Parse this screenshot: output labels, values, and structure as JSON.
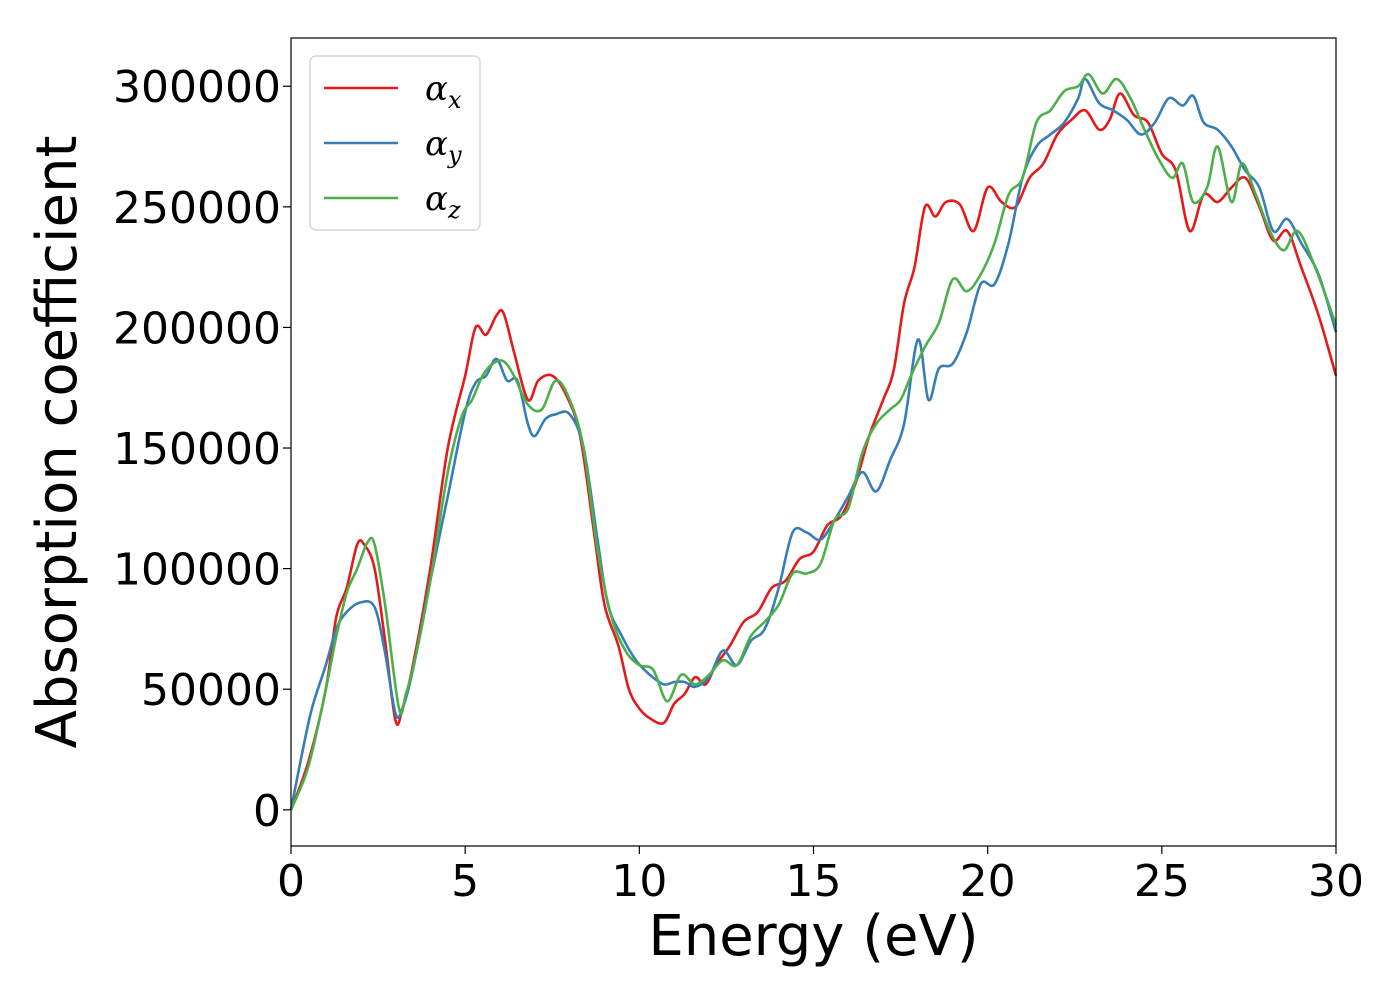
{
  "chart_data": {
    "type": "line",
    "title": "",
    "xlabel": "Energy (eV)",
    "ylabel": "Absorption coefficient",
    "xlim": [
      0,
      30
    ],
    "ylim": [
      -15000,
      320000
    ],
    "xticks": [
      0,
      5,
      10,
      15,
      20,
      25,
      30
    ],
    "yticks": [
      0,
      50000,
      100000,
      150000,
      200000,
      250000,
      300000
    ],
    "grid": false,
    "legend_position": "top-left",
    "series": [
      {
        "name": "αx",
        "legend_symbol": "α",
        "legend_sub": "x",
        "color": "#e41a1c",
        "points": [
          [
            0,
            0
          ],
          [
            0.5,
            20000
          ],
          [
            1,
            50000
          ],
          [
            1.3,
            80000
          ],
          [
            1.6,
            92000
          ],
          [
            1.9,
            110000
          ],
          [
            2.1,
            110000
          ],
          [
            2.4,
            100000
          ],
          [
            2.7,
            70000
          ],
          [
            3.0,
            37000
          ],
          [
            3.2,
            42000
          ],
          [
            3.5,
            60000
          ],
          [
            4.0,
            100000
          ],
          [
            4.5,
            150000
          ],
          [
            5.0,
            180000
          ],
          [
            5.3,
            200000
          ],
          [
            5.6,
            197000
          ],
          [
            5.9,
            205000
          ],
          [
            6.1,
            206000
          ],
          [
            6.4,
            190000
          ],
          [
            6.8,
            170000
          ],
          [
            7.1,
            178000
          ],
          [
            7.5,
            180000
          ],
          [
            7.9,
            172000
          ],
          [
            8.3,
            155000
          ],
          [
            8.7,
            115000
          ],
          [
            9.0,
            85000
          ],
          [
            9.4,
            68000
          ],
          [
            9.7,
            50000
          ],
          [
            10.0,
            42000
          ],
          [
            10.3,
            38000
          ],
          [
            10.7,
            36000
          ],
          [
            11.0,
            44000
          ],
          [
            11.3,
            48000
          ],
          [
            11.6,
            55000
          ],
          [
            11.9,
            52000
          ],
          [
            12.2,
            60000
          ],
          [
            12.6,
            68000
          ],
          [
            13.0,
            78000
          ],
          [
            13.4,
            82000
          ],
          [
            13.8,
            92000
          ],
          [
            14.2,
            95000
          ],
          [
            14.6,
            104000
          ],
          [
            15.0,
            107000
          ],
          [
            15.4,
            118000
          ],
          [
            15.8,
            122000
          ],
          [
            16.2,
            135000
          ],
          [
            16.6,
            155000
          ],
          [
            17.0,
            170000
          ],
          [
            17.3,
            182000
          ],
          [
            17.6,
            210000
          ],
          [
            17.9,
            225000
          ],
          [
            18.2,
            250000
          ],
          [
            18.5,
            246000
          ],
          [
            18.8,
            252000
          ],
          [
            19.2,
            251000
          ],
          [
            19.6,
            240000
          ],
          [
            20.0,
            258000
          ],
          [
            20.4,
            252000
          ],
          [
            20.8,
            250000
          ],
          [
            21.2,
            262000
          ],
          [
            21.6,
            268000
          ],
          [
            22.0,
            280000
          ],
          [
            22.4,
            286000
          ],
          [
            22.8,
            290000
          ],
          [
            23.2,
            282000
          ],
          [
            23.5,
            286000
          ],
          [
            23.8,
            297000
          ],
          [
            24.2,
            288000
          ],
          [
            24.6,
            285000
          ],
          [
            25.0,
            272000
          ],
          [
            25.4,
            265000
          ],
          [
            25.8,
            240000
          ],
          [
            26.2,
            255000
          ],
          [
            26.6,
            252000
          ],
          [
            27.0,
            258000
          ],
          [
            27.4,
            262000
          ],
          [
            27.8,
            250000
          ],
          [
            28.2,
            236000
          ],
          [
            28.6,
            240000
          ],
          [
            29.0,
            225000
          ],
          [
            29.5,
            205000
          ],
          [
            30.0,
            180000
          ]
        ]
      },
      {
        "name": "αy",
        "legend_symbol": "α",
        "legend_sub": "y",
        "color": "#377eb8",
        "points": [
          [
            0,
            0
          ],
          [
            0.3,
            22000
          ],
          [
            0.6,
            42000
          ],
          [
            1.0,
            60000
          ],
          [
            1.3,
            75000
          ],
          [
            1.6,
            82000
          ],
          [
            2.0,
            86000
          ],
          [
            2.4,
            84000
          ],
          [
            2.7,
            65000
          ],
          [
            3.0,
            40000
          ],
          [
            3.2,
            42000
          ],
          [
            3.5,
            58000
          ],
          [
            4.0,
            95000
          ],
          [
            4.5,
            130000
          ],
          [
            5.0,
            165000
          ],
          [
            5.3,
            177000
          ],
          [
            5.6,
            180000
          ],
          [
            5.9,
            187000
          ],
          [
            6.2,
            178000
          ],
          [
            6.5,
            178000
          ],
          [
            6.8,
            160000
          ],
          [
            7.0,
            155000
          ],
          [
            7.3,
            162000
          ],
          [
            7.6,
            164000
          ],
          [
            8.0,
            164000
          ],
          [
            8.4,
            150000
          ],
          [
            8.8,
            112000
          ],
          [
            9.1,
            85000
          ],
          [
            9.5,
            72000
          ],
          [
            9.9,
            62000
          ],
          [
            10.3,
            56000
          ],
          [
            10.7,
            52000
          ],
          [
            11.0,
            53000
          ],
          [
            11.3,
            53000
          ],
          [
            11.6,
            51000
          ],
          [
            12.0,
            55000
          ],
          [
            12.4,
            66000
          ],
          [
            12.8,
            60000
          ],
          [
            13.2,
            70000
          ],
          [
            13.6,
            75000
          ],
          [
            14.0,
            92000
          ],
          [
            14.4,
            115000
          ],
          [
            14.8,
            115000
          ],
          [
            15.2,
            112000
          ],
          [
            15.6,
            120000
          ],
          [
            16.0,
            130000
          ],
          [
            16.4,
            140000
          ],
          [
            16.8,
            132000
          ],
          [
            17.2,
            145000
          ],
          [
            17.6,
            160000
          ],
          [
            18.0,
            195000
          ],
          [
            18.3,
            170000
          ],
          [
            18.6,
            183000
          ],
          [
            19.0,
            185000
          ],
          [
            19.4,
            198000
          ],
          [
            19.8,
            218000
          ],
          [
            20.2,
            218000
          ],
          [
            20.6,
            235000
          ],
          [
            21.0,
            262000
          ],
          [
            21.4,
            275000
          ],
          [
            21.8,
            280000
          ],
          [
            22.2,
            285000
          ],
          [
            22.6,
            295000
          ],
          [
            22.8,
            303000
          ],
          [
            23.2,
            293000
          ],
          [
            23.6,
            290000
          ],
          [
            24.0,
            286000
          ],
          [
            24.4,
            280000
          ],
          [
            24.8,
            285000
          ],
          [
            25.2,
            295000
          ],
          [
            25.6,
            292000
          ],
          [
            25.9,
            296000
          ],
          [
            26.2,
            285000
          ],
          [
            26.6,
            282000
          ],
          [
            27.0,
            275000
          ],
          [
            27.4,
            265000
          ],
          [
            27.8,
            258000
          ],
          [
            28.2,
            240000
          ],
          [
            28.6,
            245000
          ],
          [
            29.0,
            235000
          ],
          [
            29.5,
            222000
          ],
          [
            30.0,
            198000
          ]
        ]
      },
      {
        "name": "αz",
        "legend_symbol": "α",
        "legend_sub": "z",
        "color": "#4daf4a",
        "points": [
          [
            0,
            0
          ],
          [
            0.5,
            18000
          ],
          [
            1.0,
            50000
          ],
          [
            1.3,
            72000
          ],
          [
            1.6,
            90000
          ],
          [
            1.9,
            100000
          ],
          [
            2.2,
            111000
          ],
          [
            2.4,
            110000
          ],
          [
            2.7,
            85000
          ],
          [
            3.1,
            42000
          ],
          [
            3.3,
            48000
          ],
          [
            3.6,
            65000
          ],
          [
            4.0,
            95000
          ],
          [
            4.5,
            140000
          ],
          [
            4.9,
            163000
          ],
          [
            5.2,
            170000
          ],
          [
            5.5,
            180000
          ],
          [
            5.8,
            185000
          ],
          [
            6.1,
            186000
          ],
          [
            6.4,
            180000
          ],
          [
            6.8,
            168000
          ],
          [
            7.2,
            166000
          ],
          [
            7.6,
            178000
          ],
          [
            8.0,
            170000
          ],
          [
            8.4,
            150000
          ],
          [
            8.8,
            108000
          ],
          [
            9.2,
            80000
          ],
          [
            9.6,
            66000
          ],
          [
            10.0,
            60000
          ],
          [
            10.4,
            58000
          ],
          [
            10.8,
            45000
          ],
          [
            11.2,
            56000
          ],
          [
            11.6,
            52000
          ],
          [
            12.0,
            56000
          ],
          [
            12.4,
            62000
          ],
          [
            12.8,
            60000
          ],
          [
            13.2,
            72000
          ],
          [
            13.6,
            78000
          ],
          [
            14.0,
            85000
          ],
          [
            14.4,
            98000
          ],
          [
            14.8,
            98000
          ],
          [
            15.2,
            102000
          ],
          [
            15.6,
            120000
          ],
          [
            16.0,
            125000
          ],
          [
            16.4,
            148000
          ],
          [
            16.8,
            160000
          ],
          [
            17.2,
            166000
          ],
          [
            17.5,
            170000
          ],
          [
            17.8,
            180000
          ],
          [
            18.2,
            192000
          ],
          [
            18.6,
            202000
          ],
          [
            19.0,
            220000
          ],
          [
            19.4,
            215000
          ],
          [
            19.8,
            222000
          ],
          [
            20.2,
            235000
          ],
          [
            20.6,
            255000
          ],
          [
            21.0,
            262000
          ],
          [
            21.4,
            285000
          ],
          [
            21.8,
            290000
          ],
          [
            22.2,
            298000
          ],
          [
            22.6,
            300000
          ],
          [
            22.9,
            305000
          ],
          [
            23.3,
            297000
          ],
          [
            23.7,
            303000
          ],
          [
            24.1,
            295000
          ],
          [
            24.5,
            282000
          ],
          [
            24.9,
            270000
          ],
          [
            25.3,
            262000
          ],
          [
            25.6,
            268000
          ],
          [
            25.9,
            252000
          ],
          [
            26.3,
            258000
          ],
          [
            26.6,
            275000
          ],
          [
            27.0,
            252000
          ],
          [
            27.3,
            268000
          ],
          [
            27.7,
            255000
          ],
          [
            28.1,
            240000
          ],
          [
            28.5,
            232000
          ],
          [
            28.9,
            240000
          ],
          [
            29.4,
            225000
          ],
          [
            30.0,
            201000
          ]
        ]
      }
    ]
  }
}
